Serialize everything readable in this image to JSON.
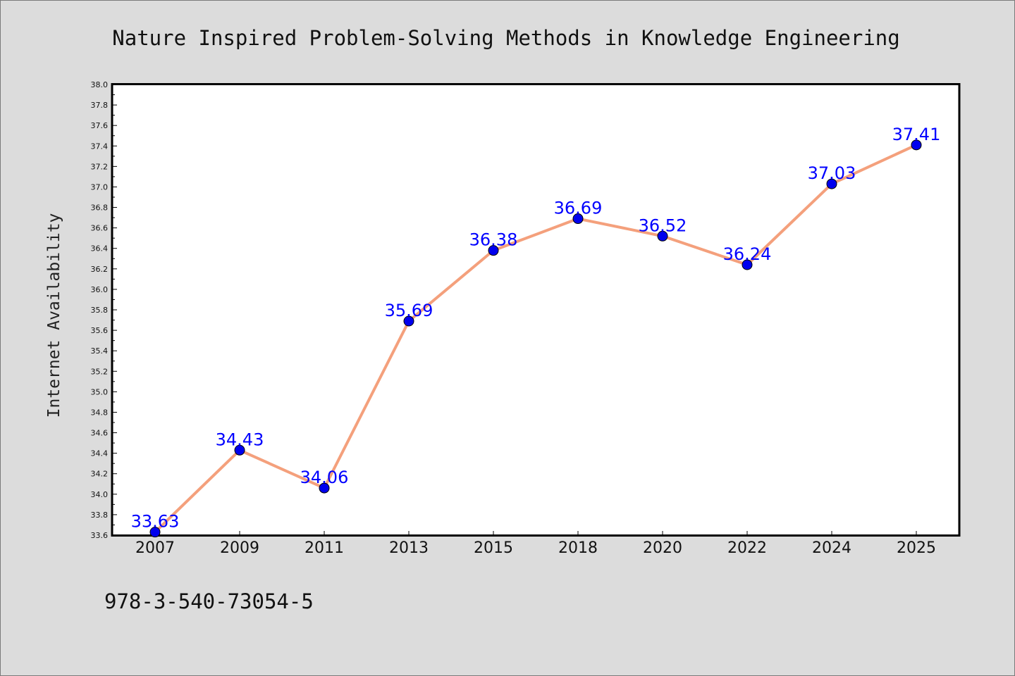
{
  "chart_data": {
    "type": "line",
    "title": "Nature Inspired Problem-Solving Methods in Knowledge Engineering",
    "xlabel": "",
    "ylabel": "Internet Availability",
    "categories": [
      "2007",
      "2009",
      "2011",
      "2013",
      "2015",
      "2018",
      "2020",
      "2022",
      "2024",
      "2025"
    ],
    "series": [
      {
        "values": [
          33.63,
          34.43,
          34.06,
          35.69,
          36.38,
          36.69,
          36.52,
          36.24,
          37.03,
          37.41
        ]
      }
    ],
    "data_labels": [
      "33.63",
      "34.43",
      "34.06",
      "35.69",
      "36.38",
      "36.69",
      "36.52",
      "36.24",
      "37.03",
      "37.41"
    ],
    "ylim": [
      33.6,
      38.0
    ],
    "y_major_ticks": [
      "33.6",
      "33.8",
      "34.0",
      "34.2",
      "34.4",
      "34.6",
      "34.8",
      "35.0",
      "35.2",
      "35.4",
      "35.6",
      "35.8",
      "36.0",
      "36.2",
      "36.4",
      "36.6",
      "36.8",
      "37.0",
      "37.2",
      "37.4",
      "37.6",
      "37.8",
      "38.0"
    ],
    "grid": false,
    "line_color": "#f4a07c",
    "marker_color": "#0000ee",
    "label_color": "#0000ff"
  },
  "footer": {
    "isbn": "978-3-540-73054-5"
  }
}
